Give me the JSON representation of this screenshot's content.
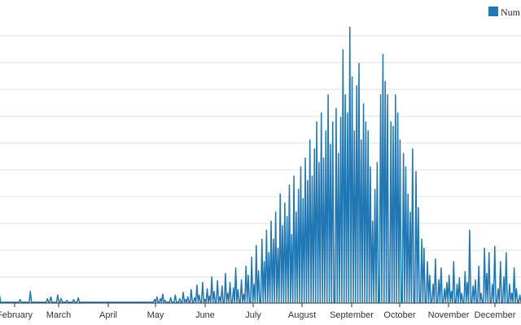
{
  "chart_data": {
    "type": "line",
    "title": "",
    "xlabel": "",
    "ylabel": "",
    "grid": true,
    "legend": {
      "position": "top-right",
      "entries": [
        "Num"
      ]
    },
    "colors": {
      "series": "#1f77b4",
      "grid": "#e0e0e0",
      "axis": "#333333"
    },
    "x_ticks": [
      "February",
      "March",
      "April",
      "May",
      "June",
      "July",
      "August",
      "September",
      "October",
      "November",
      "December"
    ],
    "series": [
      {
        "name": "Num",
        "x_start_month_index": 1,
        "values": [
          0,
          8,
          0,
          0,
          0,
          0,
          0,
          0,
          0,
          0,
          0,
          0,
          0,
          0,
          0,
          0,
          0,
          0,
          0,
          3,
          0,
          0,
          0,
          0,
          0,
          0,
          0,
          0,
          12,
          0,
          0,
          0,
          0,
          0,
          0,
          0,
          0,
          0,
          0,
          0,
          0,
          0,
          0,
          4,
          0,
          0,
          6,
          0,
          0,
          0,
          0,
          0,
          8,
          0,
          0,
          4,
          0,
          0,
          0,
          0,
          2,
          0,
          0,
          0,
          0,
          0,
          3,
          0,
          0,
          0,
          5,
          0,
          0,
          0,
          0,
          0,
          0,
          0,
          0,
          0,
          0,
          0,
          0,
          0,
          0,
          0,
          0,
          0,
          0,
          0,
          0,
          0,
          0,
          0,
          0,
          0,
          0,
          0,
          0,
          0,
          0,
          0,
          0,
          0,
          0,
          0,
          0,
          0,
          0,
          0,
          0,
          0,
          0,
          0,
          0,
          0,
          0,
          0,
          0,
          0,
          0,
          0,
          0,
          0,
          0,
          0,
          0,
          0,
          0,
          0,
          0,
          0,
          0,
          0,
          0,
          0,
          0,
          3,
          0,
          6,
          0,
          0,
          4,
          0,
          9,
          0,
          2,
          0,
          0,
          0,
          0,
          5,
          0,
          0,
          0,
          8,
          0,
          0,
          0,
          4,
          0,
          0,
          11,
          0,
          3,
          0,
          6,
          0,
          0,
          14,
          0,
          0,
          5,
          0,
          19,
          0,
          8,
          0,
          0,
          22,
          0,
          3,
          0,
          15,
          0,
          7,
          0,
          28,
          0,
          12,
          0,
          0,
          24,
          0,
          6,
          0,
          18,
          0,
          0,
          32,
          0,
          10,
          0,
          22,
          0,
          0,
          16,
          0,
          38,
          0,
          14,
          0,
          0,
          25,
          0,
          9,
          0,
          40,
          0,
          30,
          0,
          0,
          50,
          0,
          20,
          0,
          63,
          0,
          35,
          0,
          0,
          70,
          0,
          45,
          0,
          80,
          0,
          55,
          0,
          90,
          0,
          70,
          0,
          100,
          0,
          60,
          0,
          120,
          0,
          85,
          0,
          110,
          0,
          95,
          0,
          130,
          0,
          75,
          0,
          140,
          0,
          100,
          0,
          125,
          0,
          150,
          0,
          115,
          0,
          160,
          0,
          135,
          0,
          180,
          0,
          140,
          0,
          170,
          0,
          200,
          0,
          155,
          0,
          210,
          0,
          160,
          0,
          190,
          0,
          230,
          0,
          175,
          0,
          200,
          0,
          0,
          215,
          0,
          165,
          0,
          205,
          0,
          280,
          0,
          230,
          0,
          210,
          0,
          305,
          0,
          250,
          0,
          190,
          0,
          240,
          0,
          265,
          0,
          180,
          0,
          220,
          0,
          200,
          0,
          190,
          0,
          150,
          0,
          90,
          0,
          125,
          0,
          155,
          0,
          0,
          230,
          0,
          275,
          0,
          245,
          0,
          230,
          0,
          0,
          200,
          0,
          195,
          0,
          230,
          0,
          210,
          0,
          180,
          0,
          0,
          165,
          0,
          150,
          0,
          120,
          0,
          100,
          0,
          170,
          0,
          0,
          145,
          0,
          105,
          0,
          0,
          70,
          0,
          60,
          0,
          0,
          45,
          0,
          30,
          0,
          0,
          20,
          0,
          48,
          0,
          0,
          25,
          0,
          38,
          0,
          0,
          15,
          0,
          22,
          0,
          30,
          0,
          12,
          0,
          45,
          0,
          0,
          20,
          0,
          27,
          0,
          10,
          0,
          0,
          34,
          0,
          22,
          0,
          80,
          0,
          0,
          18,
          0,
          25,
          0,
          0,
          40,
          0,
          10,
          0,
          0,
          60,
          0,
          32,
          0,
          55,
          0,
          0,
          20,
          0,
          62,
          0,
          0,
          15,
          0,
          45,
          0,
          0,
          28,
          0,
          55,
          0,
          0,
          20,
          0,
          10,
          0,
          38,
          0,
          15,
          0,
          0,
          8,
          0
        ]
      }
    ],
    "ylim": [
      0,
      310
    ]
  }
}
